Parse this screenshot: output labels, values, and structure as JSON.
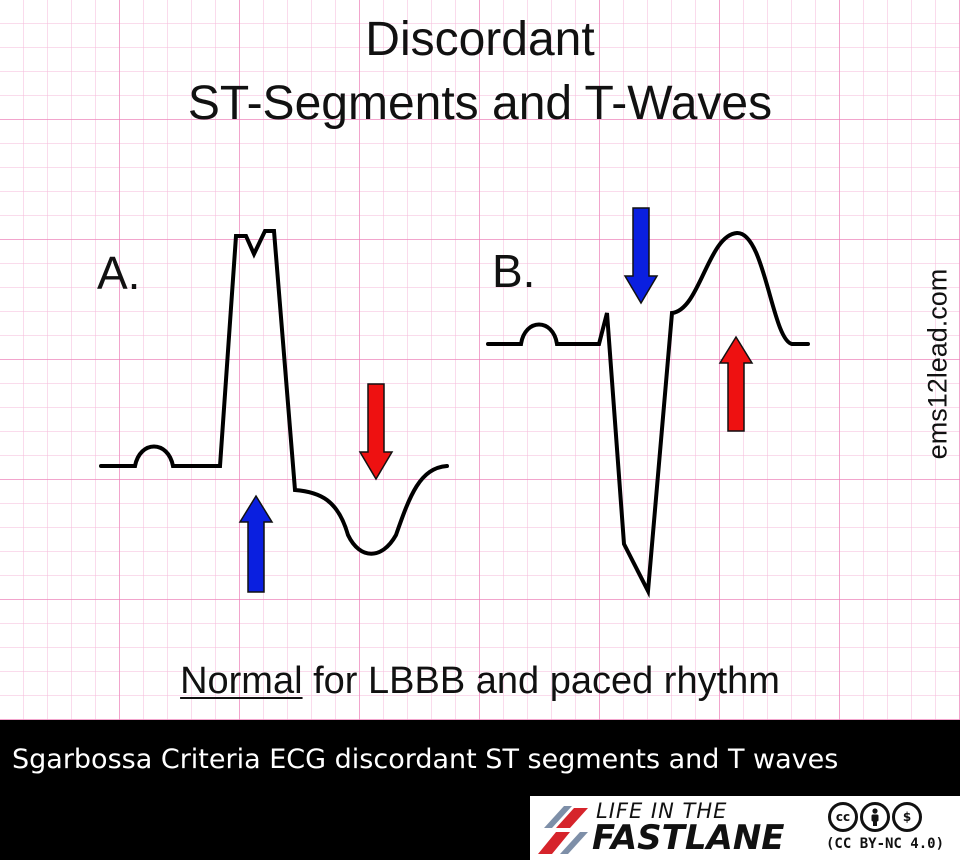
{
  "title": {
    "line1": "Discordant",
    "line2": "ST-Segments and T-Waves"
  },
  "panels": [
    {
      "label": "A.",
      "st_arrow": "up",
      "st_arrow_color": "#0a1fe0",
      "t_arrow": "down",
      "t_arrow_color": "#ee1111"
    },
    {
      "label": "B.",
      "st_arrow": "down",
      "st_arrow_color": "#0a1fe0",
      "t_arrow": "up",
      "t_arrow_color": "#ee1111"
    }
  ],
  "watermark": "ems12lead.com",
  "caption": {
    "emphasis": "Normal",
    "rest": " for LBBB and paced rhythm"
  },
  "footer": {
    "text": "Sgarbossa Criteria ECG discordant ST segments and T waves",
    "logo": {
      "line1": "LIFE IN THE",
      "line2": "FASTLANE",
      "license": "(CC BY-NC 4.0)",
      "cc_icons": [
        "cc-icon",
        "by-icon",
        "nc-icon"
      ]
    }
  },
  "colors": {
    "arrow_blue": "#0a1fe0",
    "arrow_red": "#ee1111",
    "grid": "#ec78b4",
    "logo_red": "#d6242b"
  }
}
